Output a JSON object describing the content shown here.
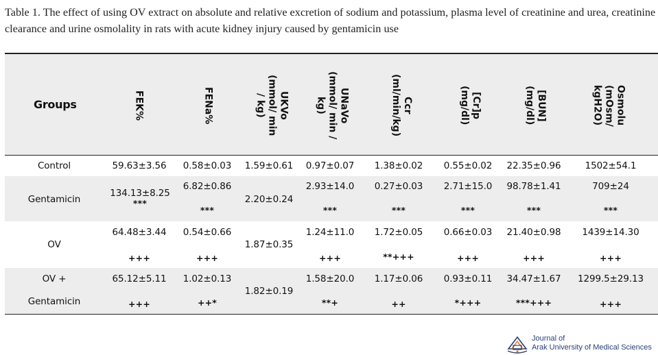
{
  "caption": "Table 1. The effect of using OV extract on absolute and relative excretion of sodium and potassium, plasma level of creatinine and urea, creatinine clearance and urine osmolality in rats with acute kidney injury caused by gentamicin use",
  "table": {
    "group_header": "Groups",
    "headers": [
      "FEK%",
      "FENa%",
      "UKVo\n(mmol/ min\n/ kg)",
      "UNaVo\n(mmol/ min /\nkg)",
      "Ccr\n(ml/min/kg)",
      "[Cr]p\n(mg/dl)",
      "[BUN]\n(mg/dl)",
      "Osmolu\n(mOsm/\nkgH2O)"
    ],
    "rows": [
      {
        "group": "Control",
        "values": [
          "59.63±3.56",
          "0.58±0.03",
          "1.59±0.61",
          "0.97±0.07",
          "1.38±0.02",
          "0.55±0.02",
          "22.35±0.96",
          "1502±54.1"
        ],
        "sig": [
          "",
          "",
          "",
          "",
          "",
          "",
          "",
          ""
        ]
      },
      {
        "group": "Gentamicin",
        "values": [
          "134.13±8.25",
          "6.82±0.86",
          "2.20±0.24",
          "2.93±14.0",
          "0.27±0.03",
          "2.71±15.0",
          "98.78±1.41",
          "709±24"
        ],
        "sig": [
          "***",
          "***",
          "",
          "***",
          "***",
          "***",
          "***",
          "***"
        ]
      },
      {
        "group": "OV",
        "values": [
          "64.48±3.44",
          "0.54±0.66",
          "1.87±0.35",
          "1.24±11.0",
          "1.72±0.05",
          "0.66±0.03",
          "21.40±0.98",
          "1439±14.30"
        ],
        "sig": [
          "+++",
          "+++",
          "",
          "+++",
          "**+++",
          "+++",
          "+++",
          "+++"
        ]
      },
      {
        "group_line1": "OV +",
        "group_line2": "Gentamicin",
        "values": [
          "65.12±5.11",
          "1.02±0.13",
          "1.82±0.19",
          "1.58±20.0",
          "1.17±0.06",
          "0.93±0.11",
          "34.47±1.67",
          "1299.5±29.13"
        ],
        "sig": [
          "+++",
          "++*",
          "",
          "**+",
          "++",
          "*+++",
          "***+++",
          "+++"
        ]
      }
    ]
  },
  "logo": {
    "line1": "Journal of",
    "line2": "Arak University of Medical Sciences",
    "colors": {
      "blue": "#2b3f73",
      "orange": "#e07a1f"
    }
  }
}
